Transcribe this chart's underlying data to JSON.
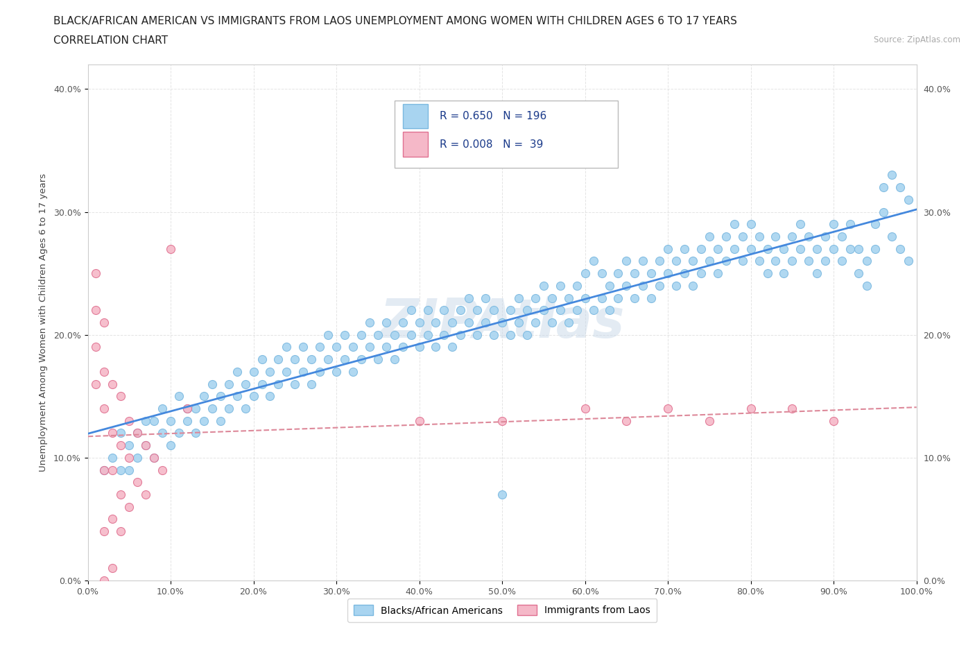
{
  "title_line1": "BLACK/AFRICAN AMERICAN VS IMMIGRANTS FROM LAOS UNEMPLOYMENT AMONG WOMEN WITH CHILDREN AGES 6 TO 17 YEARS",
  "title_line2": "CORRELATION CHART",
  "source": "Source: ZipAtlas.com",
  "ylabel": "Unemployment Among Women with Children Ages 6 to 17 years",
  "xlim": [
    0,
    1.0
  ],
  "ylim": [
    0.0,
    0.42
  ],
  "xticks": [
    0.0,
    0.1,
    0.2,
    0.3,
    0.4,
    0.5,
    0.6,
    0.7,
    0.8,
    0.9,
    1.0
  ],
  "yticks": [
    0.0,
    0.1,
    0.2,
    0.3,
    0.4
  ],
  "ytick_labels": [
    "0.0%",
    "10.0%",
    "20.0%",
    "30.0%",
    "40.0%"
  ],
  "xtick_labels": [
    "0.0%",
    "10.0%",
    "20.0%",
    "30.0%",
    "40.0%",
    "50.0%",
    "60.0%",
    "70.0%",
    "80.0%",
    "90.0%",
    "100.0%"
  ],
  "watermark": "ZIPAtlas",
  "legend_label1": "Blacks/African Americans",
  "legend_label2": "Immigrants from Laos",
  "R1": 0.65,
  "N1": 196,
  "R2": 0.008,
  "N2": 39,
  "scatter_blue": [
    [
      0.02,
      0.09
    ],
    [
      0.03,
      0.1
    ],
    [
      0.04,
      0.09
    ],
    [
      0.04,
      0.12
    ],
    [
      0.05,
      0.11
    ],
    [
      0.05,
      0.09
    ],
    [
      0.06,
      0.1
    ],
    [
      0.06,
      0.12
    ],
    [
      0.07,
      0.11
    ],
    [
      0.07,
      0.13
    ],
    [
      0.08,
      0.1
    ],
    [
      0.08,
      0.13
    ],
    [
      0.09,
      0.12
    ],
    [
      0.09,
      0.14
    ],
    [
      0.1,
      0.11
    ],
    [
      0.1,
      0.13
    ],
    [
      0.11,
      0.12
    ],
    [
      0.11,
      0.15
    ],
    [
      0.12,
      0.13
    ],
    [
      0.12,
      0.14
    ],
    [
      0.13,
      0.14
    ],
    [
      0.13,
      0.12
    ],
    [
      0.14,
      0.15
    ],
    [
      0.14,
      0.13
    ],
    [
      0.15,
      0.14
    ],
    [
      0.15,
      0.16
    ],
    [
      0.16,
      0.13
    ],
    [
      0.16,
      0.15
    ],
    [
      0.17,
      0.16
    ],
    [
      0.17,
      0.14
    ],
    [
      0.18,
      0.15
    ],
    [
      0.18,
      0.17
    ],
    [
      0.19,
      0.14
    ],
    [
      0.19,
      0.16
    ],
    [
      0.2,
      0.17
    ],
    [
      0.2,
      0.15
    ],
    [
      0.21,
      0.16
    ],
    [
      0.21,
      0.18
    ],
    [
      0.22,
      0.15
    ],
    [
      0.22,
      0.17
    ],
    [
      0.23,
      0.18
    ],
    [
      0.23,
      0.16
    ],
    [
      0.24,
      0.17
    ],
    [
      0.24,
      0.19
    ],
    [
      0.25,
      0.16
    ],
    [
      0.25,
      0.18
    ],
    [
      0.26,
      0.17
    ],
    [
      0.26,
      0.19
    ],
    [
      0.27,
      0.18
    ],
    [
      0.27,
      0.16
    ],
    [
      0.28,
      0.19
    ],
    [
      0.28,
      0.17
    ],
    [
      0.29,
      0.18
    ],
    [
      0.29,
      0.2
    ],
    [
      0.3,
      0.17
    ],
    [
      0.3,
      0.19
    ],
    [
      0.31,
      0.2
    ],
    [
      0.31,
      0.18
    ],
    [
      0.32,
      0.19
    ],
    [
      0.32,
      0.17
    ],
    [
      0.33,
      0.2
    ],
    [
      0.33,
      0.18
    ],
    [
      0.34,
      0.19
    ],
    [
      0.34,
      0.21
    ],
    [
      0.35,
      0.18
    ],
    [
      0.35,
      0.2
    ],
    [
      0.36,
      0.19
    ],
    [
      0.36,
      0.21
    ],
    [
      0.37,
      0.2
    ],
    [
      0.37,
      0.18
    ],
    [
      0.38,
      0.19
    ],
    [
      0.38,
      0.21
    ],
    [
      0.39,
      0.2
    ],
    [
      0.39,
      0.22
    ],
    [
      0.4,
      0.19
    ],
    [
      0.4,
      0.21
    ],
    [
      0.41,
      0.2
    ],
    [
      0.41,
      0.22
    ],
    [
      0.42,
      0.19
    ],
    [
      0.42,
      0.21
    ],
    [
      0.43,
      0.2
    ],
    [
      0.43,
      0.22
    ],
    [
      0.44,
      0.21
    ],
    [
      0.44,
      0.19
    ],
    [
      0.45,
      0.2
    ],
    [
      0.45,
      0.22
    ],
    [
      0.46,
      0.21
    ],
    [
      0.46,
      0.23
    ],
    [
      0.47,
      0.2
    ],
    [
      0.47,
      0.22
    ],
    [
      0.48,
      0.21
    ],
    [
      0.48,
      0.23
    ],
    [
      0.49,
      0.22
    ],
    [
      0.49,
      0.2
    ],
    [
      0.5,
      0.07
    ],
    [
      0.5,
      0.21
    ],
    [
      0.51,
      0.22
    ],
    [
      0.51,
      0.2
    ],
    [
      0.52,
      0.21
    ],
    [
      0.52,
      0.23
    ],
    [
      0.53,
      0.22
    ],
    [
      0.53,
      0.2
    ],
    [
      0.54,
      0.21
    ],
    [
      0.54,
      0.23
    ],
    [
      0.55,
      0.22
    ],
    [
      0.55,
      0.24
    ],
    [
      0.56,
      0.21
    ],
    [
      0.56,
      0.23
    ],
    [
      0.57,
      0.22
    ],
    [
      0.57,
      0.24
    ],
    [
      0.58,
      0.23
    ],
    [
      0.58,
      0.21
    ],
    [
      0.59,
      0.22
    ],
    [
      0.59,
      0.24
    ],
    [
      0.6,
      0.23
    ],
    [
      0.6,
      0.25
    ],
    [
      0.61,
      0.26
    ],
    [
      0.61,
      0.22
    ],
    [
      0.62,
      0.23
    ],
    [
      0.62,
      0.25
    ],
    [
      0.63,
      0.24
    ],
    [
      0.63,
      0.22
    ],
    [
      0.64,
      0.25
    ],
    [
      0.64,
      0.23
    ],
    [
      0.65,
      0.24
    ],
    [
      0.65,
      0.26
    ],
    [
      0.66,
      0.23
    ],
    [
      0.66,
      0.25
    ],
    [
      0.67,
      0.24
    ],
    [
      0.67,
      0.26
    ],
    [
      0.68,
      0.25
    ],
    [
      0.68,
      0.23
    ],
    [
      0.69,
      0.24
    ],
    [
      0.69,
      0.26
    ],
    [
      0.7,
      0.25
    ],
    [
      0.7,
      0.27
    ],
    [
      0.71,
      0.24
    ],
    [
      0.71,
      0.26
    ],
    [
      0.72,
      0.25
    ],
    [
      0.72,
      0.27
    ],
    [
      0.73,
      0.26
    ],
    [
      0.73,
      0.24
    ],
    [
      0.74,
      0.25
    ],
    [
      0.74,
      0.27
    ],
    [
      0.75,
      0.26
    ],
    [
      0.75,
      0.28
    ],
    [
      0.76,
      0.27
    ],
    [
      0.76,
      0.25
    ],
    [
      0.77,
      0.26
    ],
    [
      0.77,
      0.28
    ],
    [
      0.78,
      0.27
    ],
    [
      0.78,
      0.29
    ],
    [
      0.79,
      0.26
    ],
    [
      0.79,
      0.28
    ],
    [
      0.8,
      0.27
    ],
    [
      0.8,
      0.29
    ],
    [
      0.81,
      0.26
    ],
    [
      0.81,
      0.28
    ],
    [
      0.82,
      0.27
    ],
    [
      0.82,
      0.25
    ],
    [
      0.83,
      0.28
    ],
    [
      0.83,
      0.26
    ],
    [
      0.84,
      0.27
    ],
    [
      0.84,
      0.25
    ],
    [
      0.85,
      0.28
    ],
    [
      0.85,
      0.26
    ],
    [
      0.86,
      0.27
    ],
    [
      0.86,
      0.29
    ],
    [
      0.87,
      0.26
    ],
    [
      0.87,
      0.28
    ],
    [
      0.88,
      0.27
    ],
    [
      0.88,
      0.25
    ],
    [
      0.89,
      0.28
    ],
    [
      0.89,
      0.26
    ],
    [
      0.9,
      0.27
    ],
    [
      0.9,
      0.29
    ],
    [
      0.91,
      0.26
    ],
    [
      0.91,
      0.28
    ],
    [
      0.92,
      0.27
    ],
    [
      0.92,
      0.29
    ],
    [
      0.93,
      0.25
    ],
    [
      0.93,
      0.27
    ],
    [
      0.94,
      0.26
    ],
    [
      0.94,
      0.24
    ],
    [
      0.95,
      0.29
    ],
    [
      0.95,
      0.27
    ],
    [
      0.96,
      0.32
    ],
    [
      0.96,
      0.3
    ],
    [
      0.97,
      0.33
    ],
    [
      0.97,
      0.28
    ],
    [
      0.98,
      0.27
    ],
    [
      0.98,
      0.32
    ],
    [
      0.99,
      0.31
    ],
    [
      0.99,
      0.26
    ]
  ],
  "scatter_pink": [
    [
      0.01,
      0.25
    ],
    [
      0.01,
      0.19
    ],
    [
      0.01,
      0.16
    ],
    [
      0.01,
      0.22
    ],
    [
      0.02,
      0.21
    ],
    [
      0.02,
      0.17
    ],
    [
      0.02,
      0.14
    ],
    [
      0.02,
      0.09
    ],
    [
      0.02,
      0.04
    ],
    [
      0.02,
      0.0
    ],
    [
      0.03,
      0.16
    ],
    [
      0.03,
      0.12
    ],
    [
      0.03,
      0.09
    ],
    [
      0.03,
      0.05
    ],
    [
      0.03,
      0.01
    ],
    [
      0.04,
      0.15
    ],
    [
      0.04,
      0.11
    ],
    [
      0.04,
      0.07
    ],
    [
      0.04,
      0.04
    ],
    [
      0.05,
      0.13
    ],
    [
      0.05,
      0.1
    ],
    [
      0.05,
      0.06
    ],
    [
      0.06,
      0.12
    ],
    [
      0.06,
      0.08
    ],
    [
      0.07,
      0.11
    ],
    [
      0.07,
      0.07
    ],
    [
      0.08,
      0.1
    ],
    [
      0.09,
      0.09
    ],
    [
      0.1,
      0.27
    ],
    [
      0.12,
      0.14
    ],
    [
      0.4,
      0.13
    ],
    [
      0.5,
      0.13
    ],
    [
      0.6,
      0.14
    ],
    [
      0.65,
      0.13
    ],
    [
      0.7,
      0.14
    ],
    [
      0.75,
      0.13
    ],
    [
      0.8,
      0.14
    ],
    [
      0.85,
      0.14
    ],
    [
      0.9,
      0.13
    ]
  ],
  "blue_color": "#a8d4f0",
  "blue_edge": "#7ab8e0",
  "pink_color": "#f5b8c8",
  "pink_edge": "#e07090",
  "line_blue": "#4488dd",
  "line_pink": "#dd8899",
  "line_pink_style": "--",
  "background_color": "#ffffff",
  "grid_color": "#dddddd",
  "title_fontsize": 11,
  "axis_label_fontsize": 9.5,
  "tick_fontsize": 9
}
